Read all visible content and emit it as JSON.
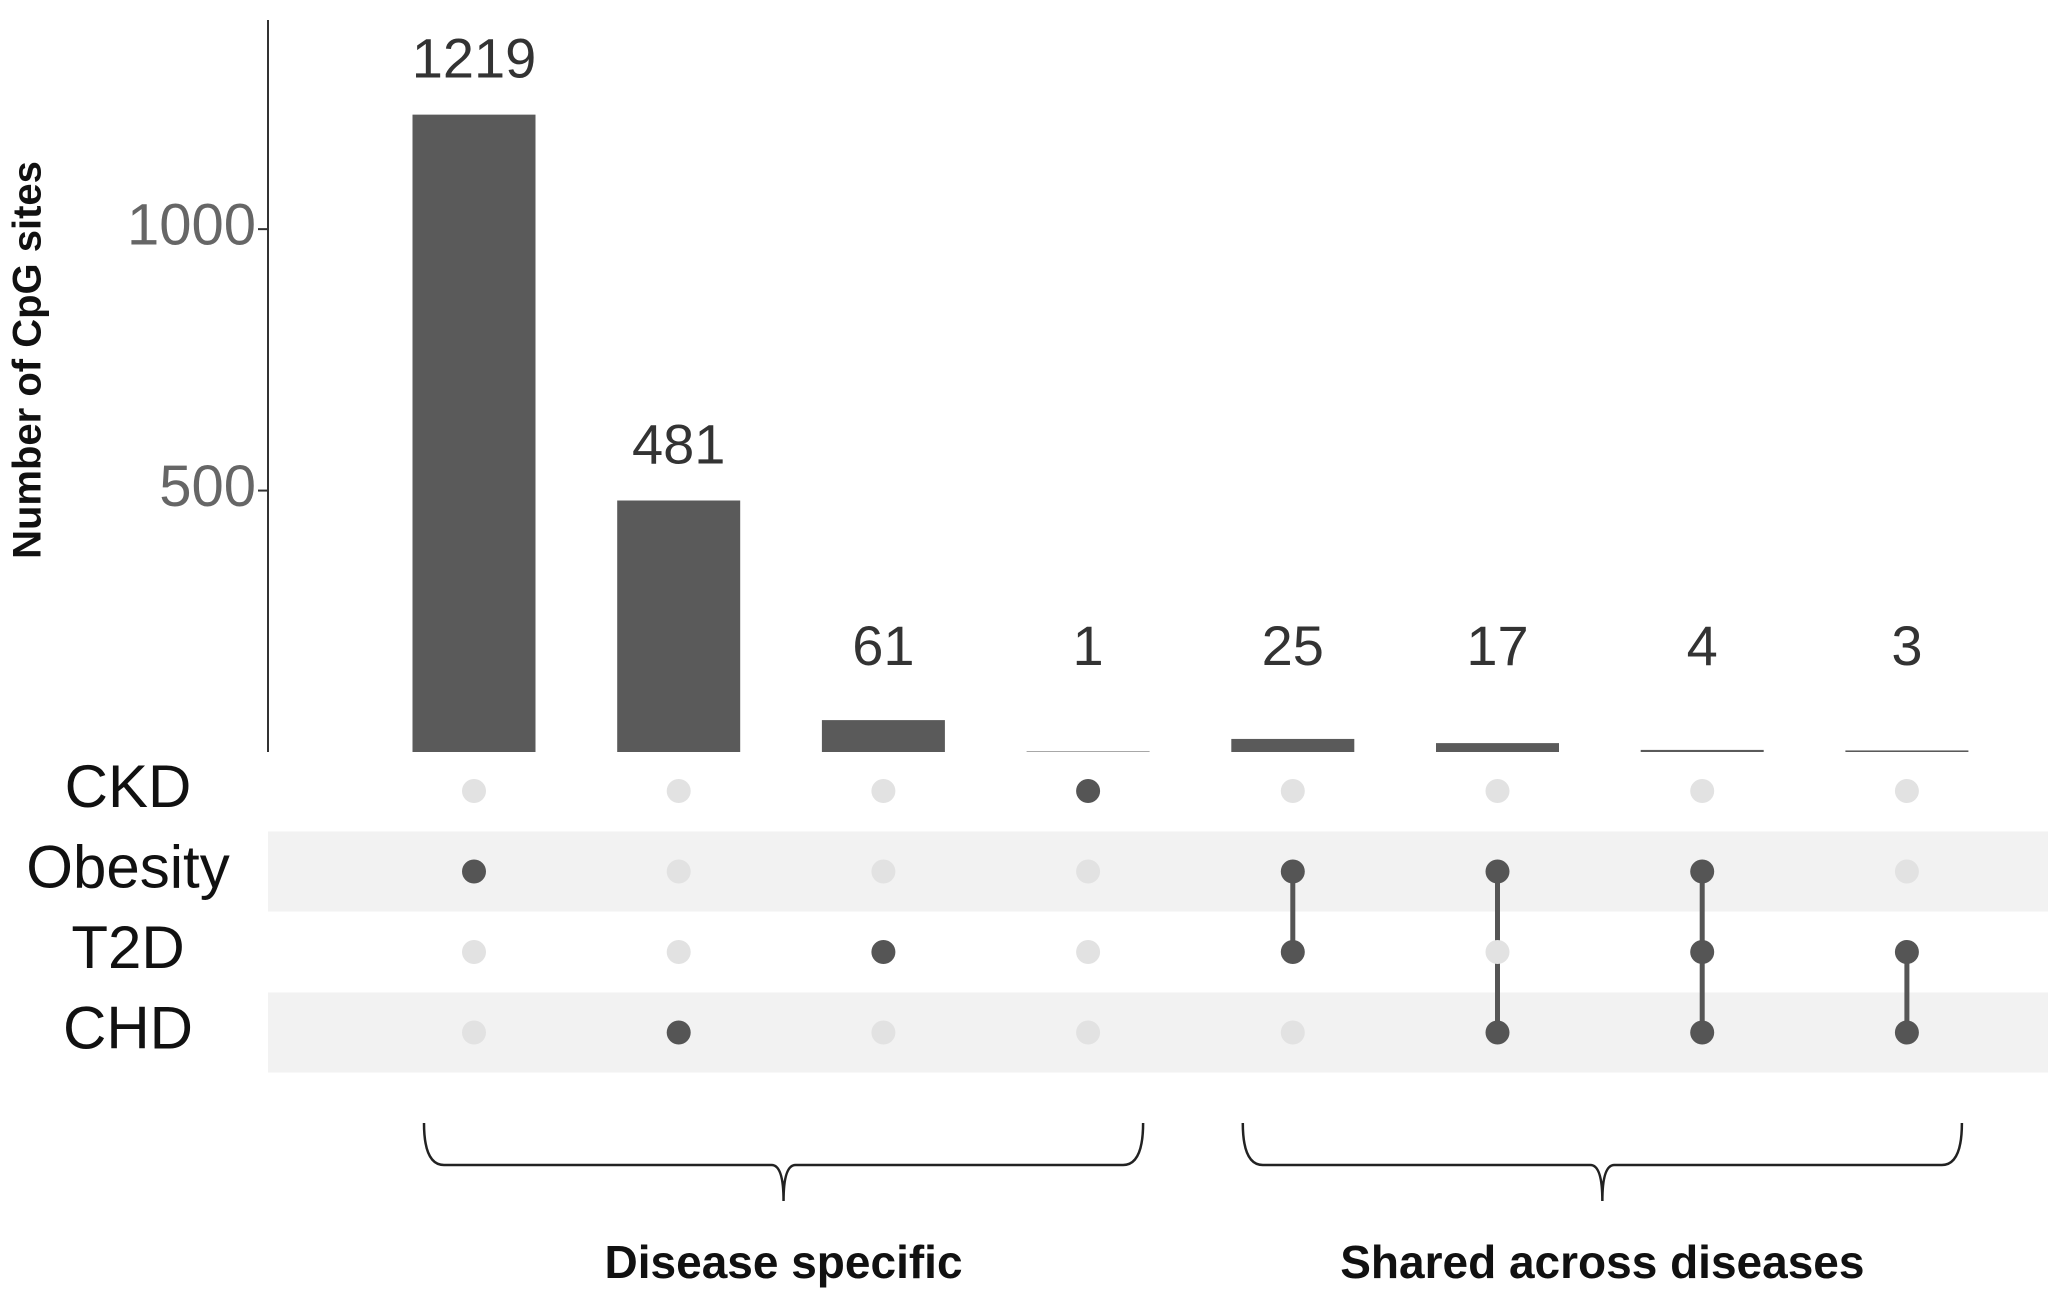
{
  "chart_data": {
    "type": "upset",
    "ylabel": "Number of CpG sites",
    "sets": [
      "CKD",
      "Obesity",
      "T2D",
      "CHD"
    ],
    "values": [
      1219,
      481,
      61,
      1,
      25,
      17,
      4,
      3
    ],
    "matrix": [
      [
        0,
        1,
        0,
        0
      ],
      [
        0,
        0,
        0,
        1
      ],
      [
        0,
        0,
        1,
        0
      ],
      [
        1,
        0,
        0,
        0
      ],
      [
        0,
        1,
        1,
        0
      ],
      [
        0,
        1,
        0,
        1
      ],
      [
        0,
        1,
        1,
        1
      ],
      [
        0,
        0,
        1,
        1
      ]
    ],
    "color": "#5a5a5a",
    "ylim": [
      0,
      1400
    ],
    "yticks": [
      500,
      1000
    ],
    "groups": [
      {
        "label": "Disease specific",
        "from": 0,
        "to": 3
      },
      {
        "label": "Shared across diseases",
        "from": 4,
        "to": 7
      }
    ]
  }
}
